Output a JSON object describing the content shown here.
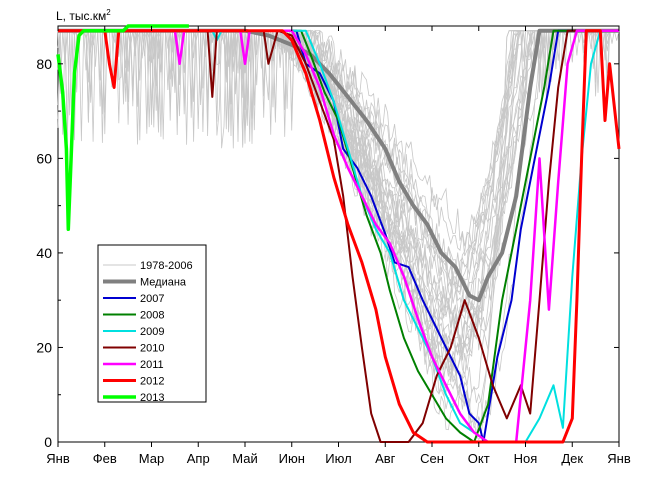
{
  "chart_data": {
    "type": "line",
    "y_axis_label": "L, тыс.км",
    "y_axis_label_sup": "2",
    "x_ticks": [
      "Янв",
      "Фев",
      "Мар",
      "Апр",
      "Май",
      "Июн",
      "Июл",
      "Авг",
      "Сен",
      "Окт",
      "Ноя",
      "Дек",
      "Янв"
    ],
    "ylim": [
      0,
      88
    ],
    "y_ticks": [
      0,
      20,
      40,
      60,
      80
    ],
    "xlim_months": [
      0,
      12
    ],
    "grid": false,
    "legend_position": "center-left",
    "background_series": {
      "name": "1978-2006",
      "color": "#c8c8c8",
      "count": 29,
      "note": "bundle of thin grey lines, mostly near 87 Jan–May, dropping through summer to minima 0–40 in Aug–Sep, recovering by Oct–Nov"
    },
    "series": [
      {
        "name": "Медиана",
        "color": "#808080",
        "width": 4,
        "points": [
          [
            0,
            87
          ],
          [
            1,
            87
          ],
          [
            2,
            87
          ],
          [
            3,
            87
          ],
          [
            4,
            87
          ],
          [
            4.5,
            86
          ],
          [
            5.0,
            84
          ],
          [
            5.4,
            82
          ],
          [
            5.8,
            78
          ],
          [
            6.2,
            73
          ],
          [
            6.6,
            68
          ],
          [
            7.0,
            62
          ],
          [
            7.3,
            55
          ],
          [
            7.6,
            50
          ],
          [
            7.9,
            46
          ],
          [
            8.2,
            40
          ],
          [
            8.5,
            37
          ],
          [
            8.8,
            31
          ],
          [
            9.0,
            30
          ],
          [
            9.2,
            35
          ],
          [
            9.5,
            40
          ],
          [
            9.8,
            52
          ],
          [
            10.1,
            75
          ],
          [
            10.3,
            87
          ],
          [
            12,
            87
          ]
        ]
      },
      {
        "name": "2007",
        "color": "#0000d0",
        "width": 2,
        "points": [
          [
            0,
            87
          ],
          [
            5.1,
            87
          ],
          [
            5.3,
            80
          ],
          [
            5.6,
            78
          ],
          [
            5.9,
            72
          ],
          [
            6.1,
            62
          ],
          [
            6.4,
            58
          ],
          [
            6.7,
            52
          ],
          [
            7.0,
            44
          ],
          [
            7.2,
            38
          ],
          [
            7.5,
            37
          ],
          [
            7.8,
            30
          ],
          [
            8.1,
            24
          ],
          [
            8.3,
            20
          ],
          [
            8.6,
            14
          ],
          [
            8.8,
            6
          ],
          [
            9.0,
            4
          ],
          [
            9.1,
            0
          ],
          [
            9.4,
            18
          ],
          [
            9.7,
            30
          ],
          [
            9.9,
            45
          ],
          [
            10.2,
            60
          ],
          [
            10.5,
            75
          ],
          [
            10.7,
            87
          ],
          [
            12,
            87
          ]
        ]
      },
      {
        "name": "2008",
        "color": "#008000",
        "width": 2,
        "points": [
          [
            0,
            87
          ],
          [
            5.2,
            87
          ],
          [
            5.4,
            82
          ],
          [
            5.7,
            74
          ],
          [
            6.0,
            68
          ],
          [
            6.3,
            58
          ],
          [
            6.6,
            48
          ],
          [
            6.9,
            40
          ],
          [
            7.1,
            32
          ],
          [
            7.4,
            22
          ],
          [
            7.7,
            15
          ],
          [
            8.0,
            10
          ],
          [
            8.3,
            5
          ],
          [
            8.6,
            2
          ],
          [
            8.9,
            0
          ],
          [
            9.2,
            8
          ],
          [
            9.5,
            30
          ],
          [
            9.8,
            45
          ],
          [
            10.1,
            60
          ],
          [
            10.4,
            75
          ],
          [
            10.6,
            87
          ],
          [
            12,
            87
          ]
        ]
      },
      {
        "name": "2009",
        "color": "#00e0e0",
        "width": 2,
        "points": [
          [
            0,
            87
          ],
          [
            3.3,
            87
          ],
          [
            3.4,
            85
          ],
          [
            3.5,
            87
          ],
          [
            5.3,
            87
          ],
          [
            5.6,
            80
          ],
          [
            5.9,
            72
          ],
          [
            6.2,
            62
          ],
          [
            6.5,
            52
          ],
          [
            6.8,
            45
          ],
          [
            7.1,
            40
          ],
          [
            7.4,
            30
          ],
          [
            7.7,
            24
          ],
          [
            8.0,
            18
          ],
          [
            8.3,
            10
          ],
          [
            8.6,
            4
          ],
          [
            8.9,
            2
          ],
          [
            9.2,
            0
          ],
          [
            9.5,
            0
          ],
          [
            9.8,
            0
          ],
          [
            10.0,
            0
          ],
          [
            10.3,
            5
          ],
          [
            10.6,
            12
          ],
          [
            10.8,
            3
          ],
          [
            11.0,
            35
          ],
          [
            11.2,
            60
          ],
          [
            11.4,
            80
          ],
          [
            11.6,
            87
          ],
          [
            12,
            87
          ]
        ]
      },
      {
        "name": "2010",
        "color": "#800000",
        "width": 2,
        "points": [
          [
            0,
            87
          ],
          [
            3.2,
            87
          ],
          [
            3.3,
            73
          ],
          [
            3.4,
            87
          ],
          [
            4.4,
            87
          ],
          [
            4.5,
            80
          ],
          [
            4.7,
            87
          ],
          [
            5.0,
            86
          ],
          [
            5.3,
            80
          ],
          [
            5.6,
            72
          ],
          [
            5.9,
            64
          ],
          [
            6.1,
            52
          ],
          [
            6.3,
            35
          ],
          [
            6.5,
            20
          ],
          [
            6.7,
            6
          ],
          [
            6.9,
            0
          ],
          [
            7.2,
            0
          ],
          [
            7.5,
            0
          ],
          [
            7.8,
            4
          ],
          [
            8.1,
            14
          ],
          [
            8.4,
            20
          ],
          [
            8.7,
            30
          ],
          [
            9.0,
            22
          ],
          [
            9.3,
            12
          ],
          [
            9.6,
            5
          ],
          [
            9.9,
            12
          ],
          [
            10.1,
            6
          ],
          [
            10.3,
            30
          ],
          [
            10.5,
            55
          ],
          [
            10.7,
            75
          ],
          [
            10.9,
            87
          ],
          [
            12,
            87
          ]
        ]
      },
      {
        "name": "2011",
        "color": "#ff00ff",
        "width": 2.5,
        "points": [
          [
            0,
            87
          ],
          [
            2.5,
            87
          ],
          [
            2.6,
            80
          ],
          [
            2.7,
            87
          ],
          [
            3.9,
            87
          ],
          [
            4.0,
            80
          ],
          [
            4.1,
            87
          ],
          [
            5.0,
            87
          ],
          [
            5.3,
            82
          ],
          [
            5.6,
            75
          ],
          [
            5.9,
            65
          ],
          [
            6.2,
            58
          ],
          [
            6.5,
            52
          ],
          [
            6.8,
            46
          ],
          [
            7.1,
            42
          ],
          [
            7.4,
            35
          ],
          [
            7.7,
            26
          ],
          [
            8.0,
            18
          ],
          [
            8.3,
            12
          ],
          [
            8.6,
            6
          ],
          [
            8.9,
            2
          ],
          [
            9.2,
            0
          ],
          [
            9.5,
            0
          ],
          [
            9.8,
            0
          ],
          [
            10.1,
            30
          ],
          [
            10.3,
            60
          ],
          [
            10.5,
            28
          ],
          [
            10.7,
            55
          ],
          [
            10.9,
            80
          ],
          [
            11.1,
            87
          ],
          [
            12,
            87
          ]
        ]
      },
      {
        "name": "2012",
        "color": "#ff0000",
        "width": 3,
        "points": [
          [
            0,
            87
          ],
          [
            1.0,
            87
          ],
          [
            1.1,
            80
          ],
          [
            1.2,
            75
          ],
          [
            1.3,
            87
          ],
          [
            4.8,
            87
          ],
          [
            5.0,
            85
          ],
          [
            5.3,
            78
          ],
          [
            5.6,
            68
          ],
          [
            5.9,
            56
          ],
          [
            6.2,
            46
          ],
          [
            6.5,
            38
          ],
          [
            6.8,
            28
          ],
          [
            7.0,
            18
          ],
          [
            7.3,
            8
          ],
          [
            7.6,
            2
          ],
          [
            7.9,
            0
          ],
          [
            8.5,
            0
          ],
          [
            9.0,
            0
          ],
          [
            10.0,
            0
          ],
          [
            10.4,
            0
          ],
          [
            10.8,
            0
          ],
          [
            11.0,
            5
          ],
          [
            11.1,
            30
          ],
          [
            11.2,
            60
          ],
          [
            11.3,
            87
          ],
          [
            11.6,
            87
          ],
          [
            11.7,
            68
          ],
          [
            11.8,
            80
          ],
          [
            12.0,
            62
          ]
        ]
      },
      {
        "name": "2013",
        "color": "#00ff00",
        "width": 3.5,
        "points": [
          [
            0,
            82
          ],
          [
            0.1,
            74
          ],
          [
            0.18,
            62
          ],
          [
            0.22,
            45
          ],
          [
            0.28,
            60
          ],
          [
            0.35,
            78
          ],
          [
            0.45,
            86
          ],
          [
            0.55,
            87
          ],
          [
            1.4,
            87
          ],
          [
            1.5,
            88
          ],
          [
            2.8,
            88
          ]
        ]
      }
    ]
  }
}
